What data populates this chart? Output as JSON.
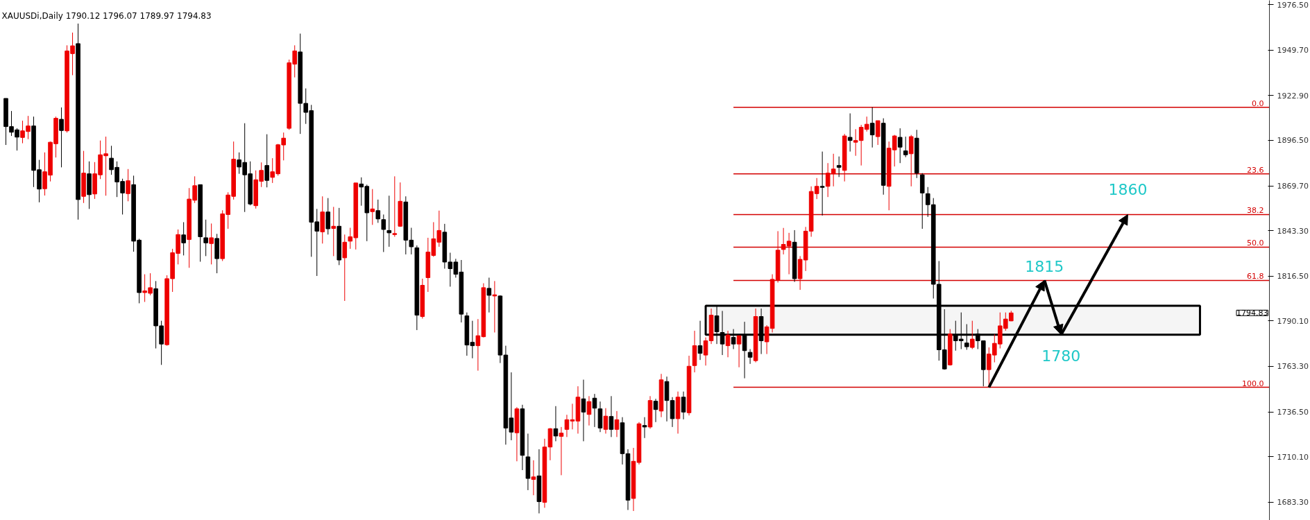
{
  "chart_data": {
    "type": "candlestick",
    "title": "XAUUSDi,Daily  1790.12 1796.07 1789.97 1794.83",
    "categories": [
      null,
      null,
      null,
      null,
      null,
      null,
      null,
      null,
      null,
      null,
      null,
      null,
      null,
      null,
      null,
      null,
      null,
      null,
      null,
      null,
      null,
      null,
      null,
      null,
      null,
      null,
      null,
      null,
      null,
      null,
      null,
      null,
      null,
      null,
      null,
      null,
      null,
      null,
      null,
      null,
      null,
      null,
      null,
      null,
      null,
      null,
      null,
      null,
      null,
      null,
      null,
      null,
      null,
      null,
      null,
      null,
      null,
      null,
      null,
      null,
      null,
      null,
      null,
      null,
      null,
      null,
      null,
      null,
      null,
      null,
      null,
      null,
      null,
      null,
      null,
      null,
      null,
      null,
      null,
      null,
      null,
      null,
      null,
      null,
      null,
      null,
      null,
      null,
      null,
      null,
      null,
      null,
      null,
      null,
      null,
      null,
      null,
      null,
      null,
      null,
      null,
      null,
      null,
      null,
      null,
      null,
      null,
      null,
      null,
      null,
      null,
      null,
      null,
      null,
      null,
      null,
      null,
      null,
      null,
      null,
      null,
      null,
      null,
      null,
      null,
      null,
      null,
      null,
      null,
      null,
      null,
      null,
      null,
      null,
      null,
      null,
      null,
      null,
      null,
      null,
      null,
      null,
      null,
      null,
      null,
      null,
      null,
      null,
      null,
      null,
      null,
      null,
      null,
      null,
      null,
      null,
      null,
      null,
      null,
      null,
      null,
      null,
      null,
      null,
      null,
      null,
      null,
      null,
      null,
      null,
      null,
      null,
      null,
      null,
      null,
      null,
      null,
      null,
      null,
      null,
      null,
      null,
      null,
      null,
      null,
      null,
      null,
      null,
      null,
      null,
      null,
      null,
      null,
      null,
      null,
      null,
      null,
      null,
      null,
      null,
      null,
      null,
      null,
      null,
      null,
      null,
      null,
      null,
      null,
      null,
      null,
      null,
      null,
      null,
      null,
      null,
      null,
      null,
      null,
      null,
      null,
      null,
      null,
      null,
      null,
      null,
      null,
      null
    ],
    "ohlc": [
      [
        1921.2,
        1921.2,
        1893.8,
        1904.6
      ],
      [
        1904.6,
        1913.8,
        1899.1,
        1901.3
      ],
      [
        1902.7,
        1903.6,
        1890.5,
        1898.4
      ],
      [
        1898.2,
        1908.1,
        1894.8,
        1902.1
      ],
      [
        1901.7,
        1910.9,
        1897.2,
        1905.0
      ],
      [
        1905.0,
        1910.5,
        1869.0,
        1878.8
      ],
      [
        1879.2,
        1885.0,
        1860.0,
        1867.8
      ],
      [
        1868.0,
        1889.4,
        1864.0,
        1878.0
      ],
      [
        1876.0,
        1895.8,
        1872.3,
        1895.4
      ],
      [
        1894.5,
        1910.5,
        1886.4,
        1909.5
      ],
      [
        1908.9,
        1915.9,
        1880.6,
        1902.3
      ],
      [
        1902.1,
        1952.5,
        1901.1,
        1949.2
      ],
      [
        1947.6,
        1960.0,
        1934.9,
        1952.2
      ],
      [
        1953.5,
        1965.3,
        1849.8,
        1861.6
      ],
      [
        1863.5,
        1890.3,
        1859.6,
        1877.2
      ],
      [
        1876.8,
        1884.1,
        1856.1,
        1864.5
      ],
      [
        1864.9,
        1883.7,
        1862.0,
        1876.8
      ],
      [
        1876.2,
        1896.4,
        1873.7,
        1888.0
      ],
      [
        1887.4,
        1898.7,
        1863.9,
        1888.6
      ],
      [
        1886.0,
        1893.3,
        1876.2,
        1879.2
      ],
      [
        1880.6,
        1884.1,
        1863.1,
        1872.0
      ],
      [
        1872.3,
        1873.9,
        1852.8,
        1865.5
      ],
      [
        1865.1,
        1879.6,
        1860.6,
        1872.7
      ],
      [
        1870.4,
        1875.7,
        1830.9,
        1837.1
      ],
      [
        1837.7,
        1838.5,
        1800.5,
        1806.8
      ],
      [
        1806.8,
        1817.6,
        1801.3,
        1807.8
      ],
      [
        1806.4,
        1818.2,
        1805.2,
        1809.7
      ],
      [
        1809.1,
        1813.6,
        1773.9,
        1787.2
      ],
      [
        1787.2,
        1790.2,
        1764.2,
        1776.5
      ],
      [
        1776.1,
        1817.0,
        1775.5,
        1815.0
      ],
      [
        1815.0,
        1832.6,
        1807.2,
        1830.3
      ],
      [
        1829.9,
        1844.0,
        1823.4,
        1841.0
      ],
      [
        1840.8,
        1848.3,
        1828.7,
        1836.1
      ],
      [
        1838.1,
        1868.4,
        1821.4,
        1861.9
      ],
      [
        1861.2,
        1875.3,
        1859.6,
        1869.8
      ],
      [
        1870.4,
        1870.4,
        1825.0,
        1839.7
      ],
      [
        1839.1,
        1849.8,
        1828.3,
        1836.1
      ],
      [
        1835.7,
        1847.5,
        1823.4,
        1839.1
      ],
      [
        1838.7,
        1841.4,
        1818.2,
        1826.8
      ],
      [
        1826.8,
        1855.3,
        1825.4,
        1853.2
      ],
      [
        1852.8,
        1865.9,
        1844.4,
        1864.3
      ],
      [
        1863.5,
        1895.8,
        1861.6,
        1885.4
      ],
      [
        1885.0,
        1889.4,
        1876.8,
        1880.8
      ],
      [
        1883.5,
        1906.6,
        1854.3,
        1876.2
      ],
      [
        1876.8,
        1884.1,
        1858.2,
        1859.0
      ],
      [
        1858.0,
        1878.8,
        1856.3,
        1873.3
      ],
      [
        1872.4,
        1883.5,
        1869.0,
        1878.8
      ],
      [
        1881.7,
        1900.1,
        1868.8,
        1872.9
      ],
      [
        1874.7,
        1886.0,
        1871.4,
        1878.0
      ],
      [
        1876.8,
        1894.4,
        1875.7,
        1893.9
      ],
      [
        1893.8,
        1901.1,
        1884.7,
        1897.8
      ],
      [
        1903.6,
        1944.1,
        1902.7,
        1942.2
      ],
      [
        1941.4,
        1952.5,
        1933.6,
        1949.2
      ],
      [
        1948.6,
        1959.4,
        1900.3,
        1918.3
      ],
      [
        1918.3,
        1927.1,
        1906.2,
        1913.0
      ],
      [
        1914.0,
        1917.4,
        1827.9,
        1848.3
      ],
      [
        1848.5,
        1856.1,
        1816.6,
        1843.0
      ],
      [
        1842.6,
        1863.5,
        1835.7,
        1854.3
      ],
      [
        1854.3,
        1862.5,
        1841.0,
        1844.4
      ],
      [
        1844.6,
        1857.3,
        1828.3,
        1845.9
      ],
      [
        1845.9,
        1856.7,
        1823.0,
        1826.0
      ],
      [
        1827.3,
        1841.0,
        1801.9,
        1836.5
      ],
      [
        1837.1,
        1845.0,
        1832.6,
        1839.7
      ],
      [
        1839.1,
        1871.4,
        1832.2,
        1871.4
      ],
      [
        1870.8,
        1874.7,
        1858.0,
        1869.0
      ],
      [
        1869.4,
        1870.4,
        1837.1,
        1853.8
      ],
      [
        1854.5,
        1867.8,
        1846.7,
        1856.1
      ],
      [
        1855.1,
        1861.6,
        1847.9,
        1850.2
      ],
      [
        1849.8,
        1852.8,
        1830.7,
        1844.0
      ],
      [
        1843.4,
        1863.9,
        1833.8,
        1842.0
      ],
      [
        1841.0,
        1875.3,
        1839.7,
        1841.6
      ],
      [
        1845.9,
        1871.7,
        1845.5,
        1860.6
      ],
      [
        1860.2,
        1863.5,
        1829.3,
        1837.7
      ],
      [
        1837.7,
        1845.0,
        1829.3,
        1833.8
      ],
      [
        1833.2,
        1834.6,
        1784.7,
        1793.5
      ],
      [
        1792.7,
        1815.0,
        1791.5,
        1811.1
      ],
      [
        1815.6,
        1839.1,
        1807.2,
        1830.7
      ],
      [
        1828.7,
        1848.3,
        1827.9,
        1838.5
      ],
      [
        1836.5,
        1855.1,
        1833.8,
        1843.4
      ],
      [
        1842.4,
        1847.3,
        1820.9,
        1824.8
      ],
      [
        1824.8,
        1830.3,
        1810.3,
        1820.9
      ],
      [
        1824.8,
        1826.7,
        1815.6,
        1817.6
      ],
      [
        1818.9,
        1826.0,
        1789.2,
        1794.1
      ],
      [
        1793.1,
        1795.1,
        1769.6,
        1775.9
      ],
      [
        1777.5,
        1790.2,
        1768.1,
        1775.5
      ],
      [
        1775.5,
        1791.2,
        1760.8,
        1781.4
      ],
      [
        1780.8,
        1812.3,
        1780.4,
        1809.7
      ],
      [
        1809.3,
        1815.6,
        1795.1,
        1805.2
      ],
      [
        1804.8,
        1813.6,
        1783.3,
        1805.5
      ],
      [
        1804.8,
        1805.2,
        1765.3,
        1770.0
      ],
      [
        1770.0,
        1775.5,
        1717.2,
        1727.0
      ],
      [
        1732.9,
        1759.8,
        1719.8,
        1724.6
      ],
      [
        1724.2,
        1739.3,
        1707.4,
        1738.3
      ],
      [
        1738.3,
        1740.7,
        1702.2,
        1710.9
      ],
      [
        1710.0,
        1723.7,
        1690.4,
        1697.3
      ],
      [
        1696.7,
        1708.0,
        1687.4,
        1698.2
      ],
      [
        1698.8,
        1714.5,
        1676.7,
        1683.6
      ],
      [
        1683.2,
        1720.7,
        1680.0,
        1715.8
      ],
      [
        1715.8,
        1727.0,
        1708.0,
        1726.6
      ],
      [
        1726.6,
        1739.9,
        1719.2,
        1722.3
      ],
      [
        1722.1,
        1727.6,
        1699.2,
        1724.0
      ],
      [
        1726.2,
        1734.8,
        1721.7,
        1731.9
      ],
      [
        1731.1,
        1741.3,
        1726.2,
        1731.9
      ],
      [
        1731.1,
        1751.6,
        1723.7,
        1745.2
      ],
      [
        1744.2,
        1755.5,
        1719.2,
        1736.4
      ],
      [
        1735.0,
        1745.8,
        1728.5,
        1742.6
      ],
      [
        1744.6,
        1747.1,
        1727.6,
        1738.7
      ],
      [
        1738.3,
        1742.6,
        1724.6,
        1727.0
      ],
      [
        1726.2,
        1738.7,
        1723.7,
        1734.0
      ],
      [
        1733.8,
        1745.8,
        1721.7,
        1726.2
      ],
      [
        1726.2,
        1737.0,
        1721.7,
        1731.9
      ],
      [
        1730.1,
        1733.4,
        1705.5,
        1711.9
      ],
      [
        1711.9,
        1714.5,
        1678.7,
        1684.5
      ],
      [
        1685.5,
        1715.3,
        1678.1,
        1707.4
      ],
      [
        1706.7,
        1730.5,
        1705.5,
        1729.5
      ],
      [
        1728.5,
        1733.4,
        1721.1,
        1727.6
      ],
      [
        1727.6,
        1745.8,
        1726.6,
        1743.2
      ],
      [
        1742.8,
        1744.2,
        1730.5,
        1737.9
      ],
      [
        1737.0,
        1758.9,
        1733.4,
        1755.4
      ],
      [
        1754.4,
        1757.3,
        1730.9,
        1743.2
      ],
      [
        1743.2,
        1745.2,
        1727.6,
        1732.5
      ],
      [
        1732.5,
        1748.5,
        1723.7,
        1745.2
      ],
      [
        1745.2,
        1748.5,
        1732.1,
        1736.4
      ],
      [
        1736.0,
        1769.6,
        1734.4,
        1763.4
      ],
      [
        1763.8,
        1784.3,
        1759.8,
        1775.5
      ],
      [
        1775.5,
        1790.2,
        1767.1,
        1771.0
      ],
      [
        1770.0,
        1780.4,
        1763.8,
        1778.4
      ],
      [
        1778.4,
        1797.4,
        1776.5,
        1793.5
      ],
      [
        1793.1,
        1799.0,
        1776.5,
        1783.7
      ],
      [
        1783.3,
        1796.0,
        1770.0,
        1776.5
      ],
      [
        1775.5,
        1784.3,
        1768.7,
        1781.8
      ],
      [
        1780.4,
        1785.3,
        1773.5,
        1776.5
      ],
      [
        1776.5,
        1781.4,
        1762.8,
        1781.4
      ],
      [
        1781.4,
        1789.6,
        1756.3,
        1772.6
      ],
      [
        1771.6,
        1773.5,
        1764.8,
        1768.7
      ],
      [
        1766.7,
        1797.4,
        1765.7,
        1792.7
      ],
      [
        1792.7,
        1797.4,
        1770.6,
        1778.4
      ],
      [
        1777.8,
        1787.6,
        1770.6,
        1786.6
      ],
      [
        1785.7,
        1817.6,
        1783.3,
        1814.6
      ],
      [
        1814.2,
        1843.0,
        1812.7,
        1831.8
      ],
      [
        1832.2,
        1844.9,
        1829.3,
        1835.2
      ],
      [
        1834.2,
        1842.0,
        1817.6,
        1837.1
      ],
      [
        1836.5,
        1843.6,
        1813.1,
        1815.0
      ],
      [
        1815.0,
        1828.3,
        1808.4,
        1826.4
      ],
      [
        1826.0,
        1845.5,
        1819.5,
        1843.0
      ],
      [
        1843.0,
        1869.4,
        1839.7,
        1866.4
      ],
      [
        1865.1,
        1874.3,
        1861.9,
        1869.4
      ],
      [
        1869.4,
        1889.9,
        1852.2,
        1868.8
      ],
      [
        1869.4,
        1883.1,
        1863.1,
        1877.2
      ],
      [
        1876.8,
        1888.6,
        1869.4,
        1879.6
      ],
      [
        1881.7,
        1887.0,
        1874.9,
        1880.6
      ],
      [
        1878.8,
        1900.3,
        1872.3,
        1899.1
      ],
      [
        1898.3,
        1912.4,
        1889.9,
        1896.4
      ],
      [
        1895.4,
        1903.1,
        1887.4,
        1896.4
      ],
      [
        1896.4,
        1905.6,
        1881.7,
        1904.2
      ],
      [
        1903.0,
        1910.5,
        1901.7,
        1906.0
      ],
      [
        1906.6,
        1916.0,
        1892.3,
        1899.7
      ],
      [
        1898.7,
        1908.1,
        1893.8,
        1908.1
      ],
      [
        1906.6,
        1909.5,
        1864.5,
        1870.0
      ],
      [
        1869.4,
        1895.8,
        1855.3,
        1891.9
      ],
      [
        1890.9,
        1899.7,
        1881.1,
        1899.1
      ],
      [
        1898.3,
        1903.6,
        1883.1,
        1892.5
      ],
      [
        1890.3,
        1898.7,
        1886.6,
        1888.0
      ],
      [
        1888.6,
        1899.7,
        1869.4,
        1898.7
      ],
      [
        1897.8,
        1902.7,
        1874.3,
        1877.2
      ],
      [
        1876.2,
        1877.2,
        1844.4,
        1865.5
      ],
      [
        1865.1,
        1869.0,
        1851.4,
        1858.6
      ],
      [
        1858.6,
        1862.5,
        1803.3,
        1811.7
      ],
      [
        1811.7,
        1825.4,
        1766.7,
        1773.1
      ],
      [
        1773.1,
        1797.0,
        1761.4,
        1761.8
      ],
      [
        1764.2,
        1785.3,
        1763.8,
        1782.4
      ],
      [
        1781.8,
        1790.2,
        1772.6,
        1778.4
      ],
      [
        1779.4,
        1795.1,
        1773.5,
        1778.4
      ],
      [
        1777.1,
        1788.2,
        1773.1,
        1774.9
      ],
      [
        1774.5,
        1790.2,
        1773.5,
        1779.4
      ],
      [
        1782.4,
        1785.3,
        1773.5,
        1778.4
      ],
      [
        1778.4,
        1778.4,
        1751.6,
        1761.4
      ],
      [
        1761.4,
        1774.5,
        1752.0,
        1770.6
      ],
      [
        1770.0,
        1782.4,
        1765.7,
        1776.9
      ],
      [
        1776.5,
        1795.1,
        1773.9,
        1787.2
      ],
      [
        1785.7,
        1795.1,
        1784.3,
        1791.2
      ],
      [
        1790.12,
        1796.07,
        1789.97,
        1794.83
      ],
      null,
      null,
      null,
      null,
      null,
      null,
      null,
      null,
      null,
      null,
      null,
      null,
      null,
      null,
      null,
      null,
      null,
      null,
      null,
      null,
      null,
      null,
      null,
      null,
      null,
      null,
      null,
      null,
      null,
      null,
      null,
      null,
      null,
      null,
      null,
      null,
      null,
      null,
      null,
      null,
      null,
      null,
      null,
      null,
      null,
      null
    ],
    "ylim": [
      1672.6,
      1979.0
    ],
    "yticks": [
      {
        "value": 1683.3,
        "label": "1683.30"
      },
      {
        "value": 1710.1,
        "label": "1710.10"
      },
      {
        "value": 1736.5,
        "label": "1736.50"
      },
      {
        "value": 1763.3,
        "label": "1763.30"
      },
      {
        "value": 1790.1,
        "label": "1790.10"
      },
      {
        "value": 1816.5,
        "label": "1816.50"
      },
      {
        "value": 1843.3,
        "label": "1843.30"
      },
      {
        "value": 1869.7,
        "label": "1869.70"
      },
      {
        "value": 1896.5,
        "label": "1896.50"
      },
      {
        "value": 1922.9,
        "label": "1922.90"
      },
      {
        "value": 1949.7,
        "label": "1949.70"
      },
      {
        "value": 1976.5,
        "label": "1976.50"
      }
    ],
    "ref_lines": [
      {
        "axis": "y",
        "value": 1916.0,
        "color": "#d40000"
      },
      {
        "axis": "y",
        "value": 1876.8,
        "color": "#d40000"
      },
      {
        "axis": "y",
        "value": 1852.8,
        "color": "#d40000"
      },
      {
        "axis": "y",
        "value": 1833.6,
        "color": "#d40000"
      },
      {
        "axis": "y",
        "value": 1814.0,
        "color": "#d40000"
      },
      {
        "axis": "y",
        "value": 1751.0,
        "color": "#d40000"
      }
    ],
    "bands": [
      {
        "axis": "y",
        "from": 1782.0,
        "to": 1799.0,
        "color": "#000000"
      }
    ],
    "annotations": [
      "1794.83",
      {
        "text": "0.0",
        "y": 1916.0
      },
      {
        "text": "23.6",
        "y": 1876.8
      },
      {
        "text": "38.2",
        "y": 1852.8
      },
      {
        "text": "50.0",
        "y": 1833.6
      },
      {
        "text": "61.8",
        "y": 1814.0
      },
      {
        "text": "100.0",
        "y": 1751.0
      },
      {
        "text": "1815",
        "y": 1814.0
      },
      {
        "text": "1780",
        "y": 1782.0
      },
      {
        "text": "1860",
        "y": 1852.8
      }
    ]
  }
}
